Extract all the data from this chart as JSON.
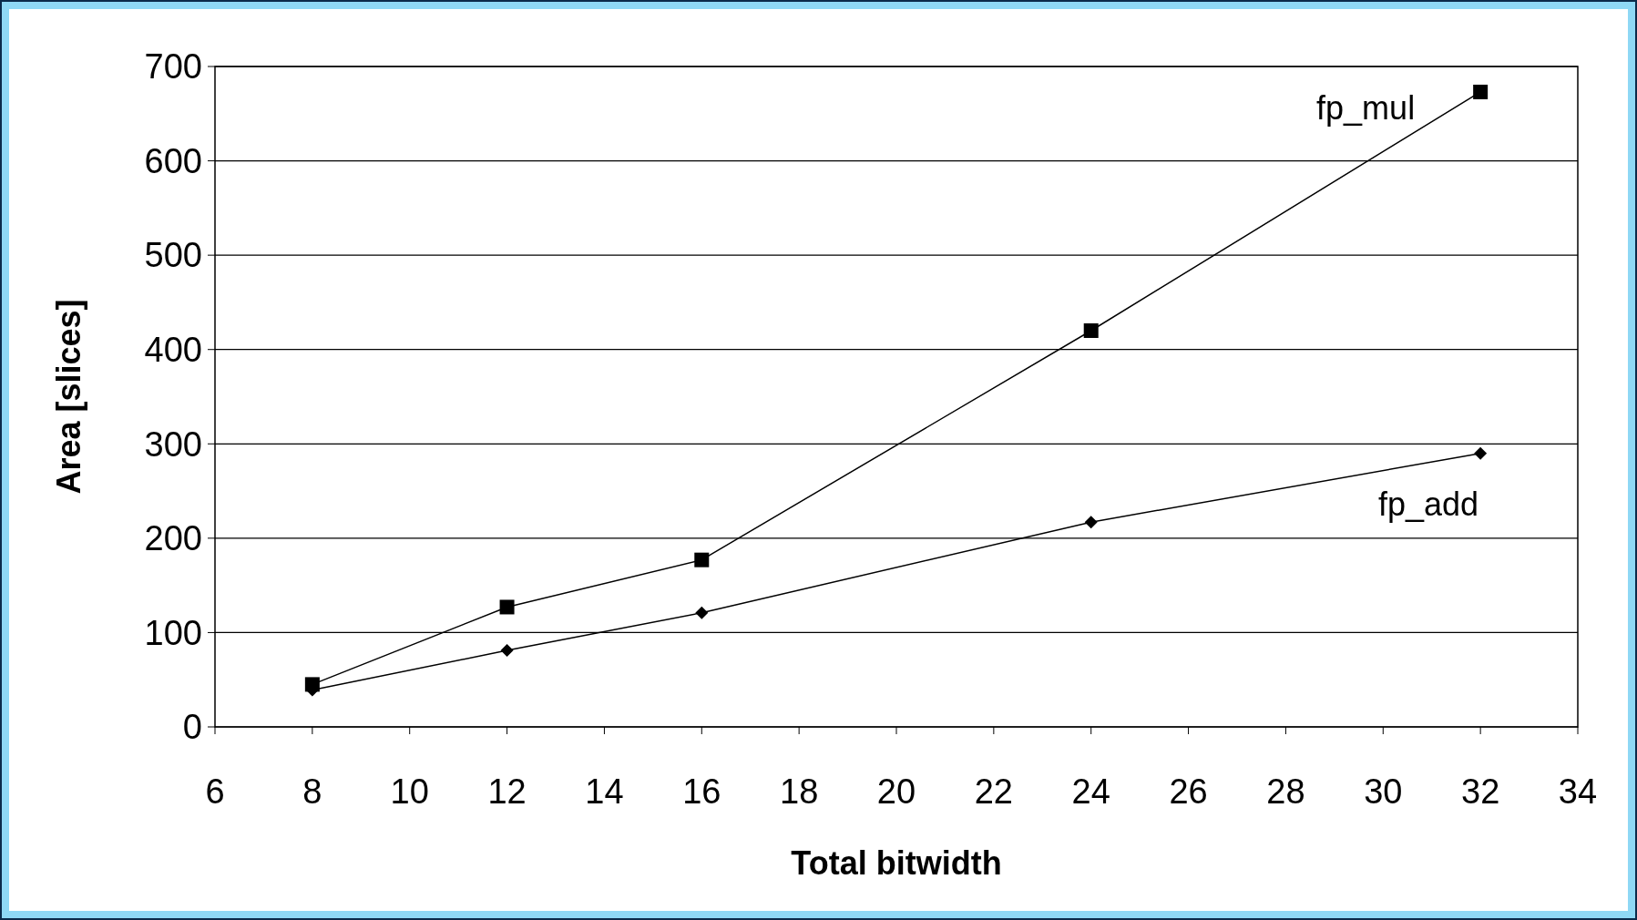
{
  "chart_data": {
    "type": "line",
    "xlabel": "Total bitwidth",
    "ylabel": "Area [slices]",
    "xlim": [
      6,
      34
    ],
    "xticks": [
      6,
      8,
      10,
      12,
      14,
      16,
      18,
      20,
      22,
      24,
      26,
      28,
      30,
      32,
      34
    ],
    "ylim": [
      0,
      700
    ],
    "yticks": [
      0,
      100,
      200,
      300,
      400,
      500,
      600,
      700
    ],
    "grid": "y",
    "x": [
      8,
      12,
      16,
      24,
      32
    ],
    "series": [
      {
        "name": "fp_mul",
        "color": "#000000",
        "marker": "square",
        "values": [
          45,
          127,
          177,
          420,
          673
        ]
      },
      {
        "name": "fp_add",
        "color": "#000000",
        "marker": "diamond",
        "values": [
          39,
          81,
          121,
          217,
          290
        ]
      }
    ]
  }
}
